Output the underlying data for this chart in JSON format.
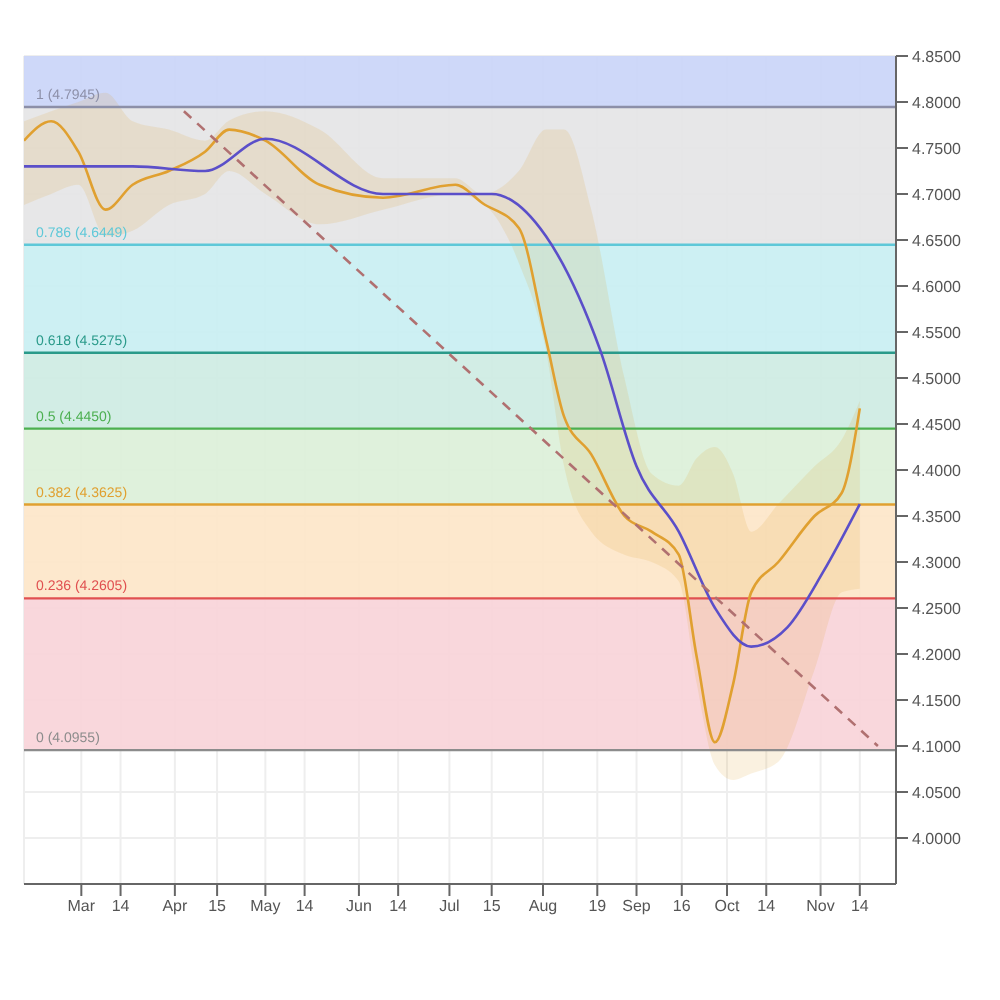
{
  "chart_data": {
    "type": "line",
    "xlim": [
      "--02-11",
      "--11-26"
    ],
    "xticks": [
      {
        "value": "--03-01",
        "label": "Mar"
      },
      {
        "value": "--03-14",
        "label": "14"
      },
      {
        "value": "--04-01",
        "label": "Apr"
      },
      {
        "value": "--04-15",
        "label": "15"
      },
      {
        "value": "--05-01",
        "label": "May"
      },
      {
        "value": "--05-14",
        "label": "14"
      },
      {
        "value": "--06-01",
        "label": "Jun"
      },
      {
        "value": "--06-14",
        "label": "14"
      },
      {
        "value": "--07-01",
        "label": "Jul"
      },
      {
        "value": "--07-15",
        "label": "15"
      },
      {
        "value": "--08-01",
        "label": "Aug"
      },
      {
        "value": "--08-19",
        "label": "19"
      },
      {
        "value": "--09-01",
        "label": "Sep"
      },
      {
        "value": "--09-16",
        "label": "16"
      },
      {
        "value": "--10-01",
        "label": "Oct"
      },
      {
        "value": "--10-14",
        "label": "14"
      },
      {
        "value": "--11-01",
        "label": "Nov"
      },
      {
        "value": "--11-14",
        "label": "14"
      }
    ],
    "ylim": [
      3.95,
      4.85
    ],
    "yticks": [
      {
        "value": 4.0,
        "label": "4.0000"
      },
      {
        "value": 4.05,
        "label": "4.0500"
      },
      {
        "value": 4.1,
        "label": "4.1000"
      },
      {
        "value": 4.15,
        "label": "4.1500"
      },
      {
        "value": 4.2,
        "label": "4.2000"
      },
      {
        "value": 4.25,
        "label": "4.2500"
      },
      {
        "value": 4.3,
        "label": "4.3000"
      },
      {
        "value": 4.35,
        "label": "4.3500"
      },
      {
        "value": 4.4,
        "label": "4.4000"
      },
      {
        "value": 4.45,
        "label": "4.4500"
      },
      {
        "value": 4.5,
        "label": "4.5000"
      },
      {
        "value": 4.55,
        "label": "4.5500"
      },
      {
        "value": 4.6,
        "label": "4.6000"
      },
      {
        "value": 4.65,
        "label": "4.6500"
      },
      {
        "value": 4.7,
        "label": "4.7000"
      },
      {
        "value": 4.75,
        "label": "4.7500"
      },
      {
        "value": 4.8,
        "label": "4.8000"
      },
      {
        "value": 4.85,
        "label": "4.8500"
      }
    ],
    "grid": true,
    "legend": false,
    "marker": "none",
    "series": [
      {
        "color": "#e0a030",
        "line_style": "solid",
        "x": [
          "--02-11",
          "--02-20",
          "--02-29",
          "--03-09",
          "--03-18",
          "--03-30",
          "--04-11",
          "--04-19",
          "--05-01",
          "--05-19",
          "--06-09",
          "--07-03",
          "--07-12",
          "--07-24",
          "--08-02",
          "--08-08",
          "--08-17",
          "--08-28",
          "--09-06",
          "--09-15",
          "--09-21",
          "--09-27",
          "--10-03",
          "--10-09",
          "--10-18",
          "--10-30",
          "--11-08",
          "--11-14"
        ],
        "values": [
          4.758,
          4.779,
          4.746,
          4.683,
          4.71,
          4.725,
          4.746,
          4.77,
          4.758,
          4.71,
          4.696,
          4.71,
          4.69,
          4.663,
          4.542,
          4.458,
          4.417,
          4.35,
          4.333,
          4.308,
          4.196,
          4.104,
          4.167,
          4.267,
          4.3,
          4.35,
          4.375,
          4.467
        ],
        "upper": [
          4.779,
          4.79,
          4.8,
          4.81,
          4.779,
          4.77,
          4.758,
          4.78,
          4.79,
          4.77,
          4.717,
          4.717,
          4.7,
          4.725,
          4.77,
          4.77,
          4.683,
          4.5,
          4.396,
          4.383,
          4.413,
          4.425,
          4.396,
          4.333,
          4.363,
          4.404,
          4.433,
          4.475
        ],
        "lower": [
          4.688,
          4.7,
          4.71,
          4.654,
          4.66,
          4.688,
          4.7,
          4.725,
          4.7,
          4.667,
          4.683,
          4.7,
          4.69,
          4.625,
          4.53,
          4.404,
          4.333,
          4.308,
          4.3,
          4.279,
          4.167,
          4.079,
          4.063,
          4.07,
          4.083,
          4.183,
          4.267,
          4.271
        ]
      },
      {
        "color": "#5b4fc9",
        "line_style": "solid",
        "x": [
          "--02-11",
          "--03-18",
          "--04-11",
          "--05-01",
          "--06-09",
          "--07-15",
          "--08-02",
          "--08-20",
          "--09-01",
          "--09-15",
          "--09-27",
          "--10-09",
          "--10-21",
          "--11-02",
          "--11-14"
        ],
        "values": [
          4.73,
          4.73,
          4.725,
          4.76,
          4.7,
          4.7,
          4.654,
          4.53,
          4.404,
          4.333,
          4.25,
          4.208,
          4.229,
          4.29,
          4.363
        ]
      },
      {
        "color": "#b07070",
        "line_style": "dashed",
        "x": [
          "--04-04",
          "--11-20"
        ],
        "values": [
          4.79,
          4.1
        ]
      }
    ],
    "ref_lines": [
      {
        "axis": "y",
        "value": 4.7945,
        "label": "1 (4.7945)",
        "color": "#8c8fa8"
      },
      {
        "axis": "y",
        "value": 4.6449,
        "label": "0.786 (4.6449)",
        "color": "#5ec8d8"
      },
      {
        "axis": "y",
        "value": 4.5275,
        "label": "0.618 (4.5275)",
        "color": "#2a9a8a"
      },
      {
        "axis": "y",
        "value": 4.445,
        "label": "0.5 (4.4450)",
        "color": "#4caf50"
      },
      {
        "axis": "y",
        "value": 4.3625,
        "label": "0.382 (4.3625)",
        "color": "#e0a030"
      },
      {
        "axis": "y",
        "value": 4.2605,
        "label": "0.236 (4.2605)",
        "color": "#e05050"
      },
      {
        "axis": "y",
        "value": 4.0955,
        "label": "0 (4.0955)",
        "color": "#8c8c8c"
      }
    ],
    "bands": [
      {
        "axis": "y",
        "from": 4.7945,
        "to": 4.85,
        "color": "#c9d4f8"
      },
      {
        "axis": "y",
        "from": 4.6449,
        "to": 4.7945,
        "color": "#e4e4e6"
      },
      {
        "axis": "y",
        "from": 4.5275,
        "to": 4.6449,
        "color": "#c8eef2"
      },
      {
        "axis": "y",
        "from": 4.445,
        "to": 4.5275,
        "color": "#cdebe2"
      },
      {
        "axis": "y",
        "from": 4.3625,
        "to": 4.445,
        "color": "#dcefd8"
      },
      {
        "axis": "y",
        "from": 4.2605,
        "to": 4.3625,
        "color": "#fde6c8"
      },
      {
        "axis": "y",
        "from": 4.0955,
        "to": 4.2605,
        "color": "#f8d3d8"
      }
    ]
  }
}
